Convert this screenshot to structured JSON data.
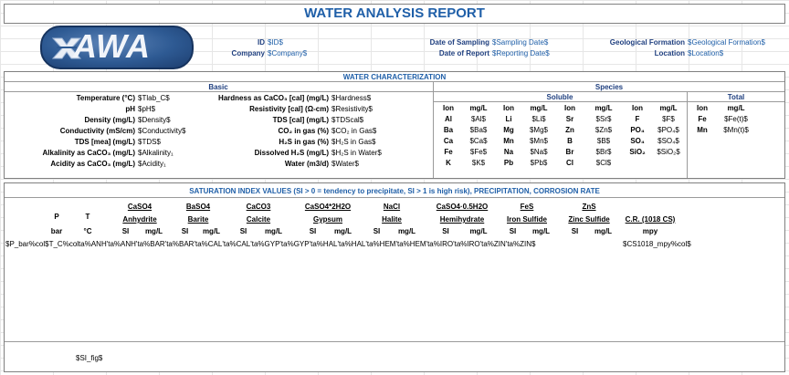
{
  "title": "WATER ANALYSIS REPORT",
  "logo": {
    "text": "AWA"
  },
  "header": {
    "id_label": "ID",
    "id_value": "$ID$",
    "company_label": "Company",
    "company_value": "$Company$",
    "sampling_label": "Date of Sampling",
    "sampling_value": "$Sampling Date$",
    "report_label": "Date of Report",
    "report_value": "$Reporting Date$",
    "formation_label": "Geological Formation",
    "formation_value": "$Geological Formation$",
    "location_label": "Location",
    "location_value": "$Location$"
  },
  "water": {
    "section_title": "WATER CHARACTERIZATION",
    "basic_title": "Basic",
    "species_title": "Species",
    "soluble_title": "Soluble",
    "total_title": "Total",
    "left": [
      {
        "label": "Temperature (°C)",
        "value": "$Tlab_C$"
      },
      {
        "label": "pH",
        "value": "$pH$"
      },
      {
        "label": "Density (mg/L)",
        "value": "$Density$"
      },
      {
        "label": "Conductivity (mS/cm)",
        "value": "$Conductivity$"
      },
      {
        "label": "TDS [mea] (mg/L)",
        "value": "$TDS$"
      },
      {
        "label": "Alkalinity as CaCO₃ (mg/L)",
        "value": "$Alkalinity₁"
      },
      {
        "label": "Acidity as CaCO₃ (mg/L)",
        "value": "$Acidity₁"
      }
    ],
    "mid": [
      {
        "label": "Hardness as CaCO₃ [cal] (mg/L)",
        "value": "$Hardness$"
      },
      {
        "label": "Resistivity [cal] (Ω-cm)",
        "value": "$Resistivity$"
      },
      {
        "label": "TDS [cal] (mg/L)",
        "value": "$TDScal$"
      },
      {
        "label": "CO₂ in gas (%)",
        "value": "$CO₂ in Gas$"
      },
      {
        "label": "H₂S in gas (%)",
        "value": "$H₂S in Gas$"
      },
      {
        "label": "Dissolved H₂S (mg/L)",
        "value": "$H₂S in Water$"
      },
      {
        "label": "Water (m3/d)",
        "value": "$Water$"
      }
    ],
    "soluble_headers": [
      "Ion",
      "mg/L",
      "Ion",
      "mg/L",
      "Ion",
      "mg/L",
      "Ion",
      "mg/L"
    ],
    "soluble_rows": [
      [
        "Al",
        "$Al$",
        "Li",
        "$Li$",
        "Sr",
        "$Sr$",
        "F",
        "$F$"
      ],
      [
        "Ba",
        "$Ba$",
        "Mg",
        "$Mg$",
        "Zn",
        "$Zn$",
        "PO₄",
        "$PO₄$"
      ],
      [
        "Ca",
        "$Ca$",
        "Mn",
        "$Mn$",
        "B",
        "$B$",
        "SO₄",
        "$SO₄$"
      ],
      [
        "Fe",
        "$Fe$",
        "Na",
        "$Na$",
        "Br",
        "$Br$",
        "SiO₂",
        "$SiO₂$"
      ],
      [
        "K",
        "$K$",
        "Pb",
        "$Pb$",
        "Cl",
        "$Cl$",
        "",
        ""
      ]
    ],
    "total_headers": [
      "Ion",
      "mg/L"
    ],
    "total_rows": [
      [
        "Fe",
        "$Fe(t)$"
      ],
      [
        "Mn",
        "$Mn(t)$"
      ]
    ]
  },
  "saturation": {
    "section_title": "SATURATION INDEX VALUES (SI > 0 = tendency to precipitate, SI > 1 is high risk), PRECIPITATION, CORROSION RATE",
    "p_label": "P",
    "p_unit": "bar",
    "t_label": "T",
    "t_unit": "°C",
    "minerals": [
      {
        "formula": "CaSO4",
        "name": "Anhydrite"
      },
      {
        "formula": "BaSO4",
        "name": "Barite"
      },
      {
        "formula": "CaCO3",
        "name": "Calcite"
      },
      {
        "formula": "CaSO4*2H2O",
        "name": "Gypsum"
      },
      {
        "formula": "NaCl",
        "name": "Halite"
      },
      {
        "formula": "CaSO4·0.5H2O",
        "name": "Hemihydrate"
      },
      {
        "formula": "FeS",
        "name": "Iron Sulfide"
      },
      {
        "formula": "ZnS",
        "name": "Zinc Sulfide"
      }
    ],
    "si_label": "SI",
    "mgl_label": "mg/L",
    "cr_label": "C.R. (1018 CS)",
    "cr_unit": "mpy",
    "data_row": "$P_bar%col$T_C%colta%ANH'ta%ANH'ta%BAR'ta%BAR'ta%CAL'ta%CAL'ta%GYP'ta%GYP'ta%HAL'ta%HAL'ta%HEM'ta%HEM'ta%IRO'ta%IRO'ta%ZIN'ta%ZIN$",
    "cr_value": "$CS1018_mpy%col$",
    "fig": "$SI_fig$"
  }
}
